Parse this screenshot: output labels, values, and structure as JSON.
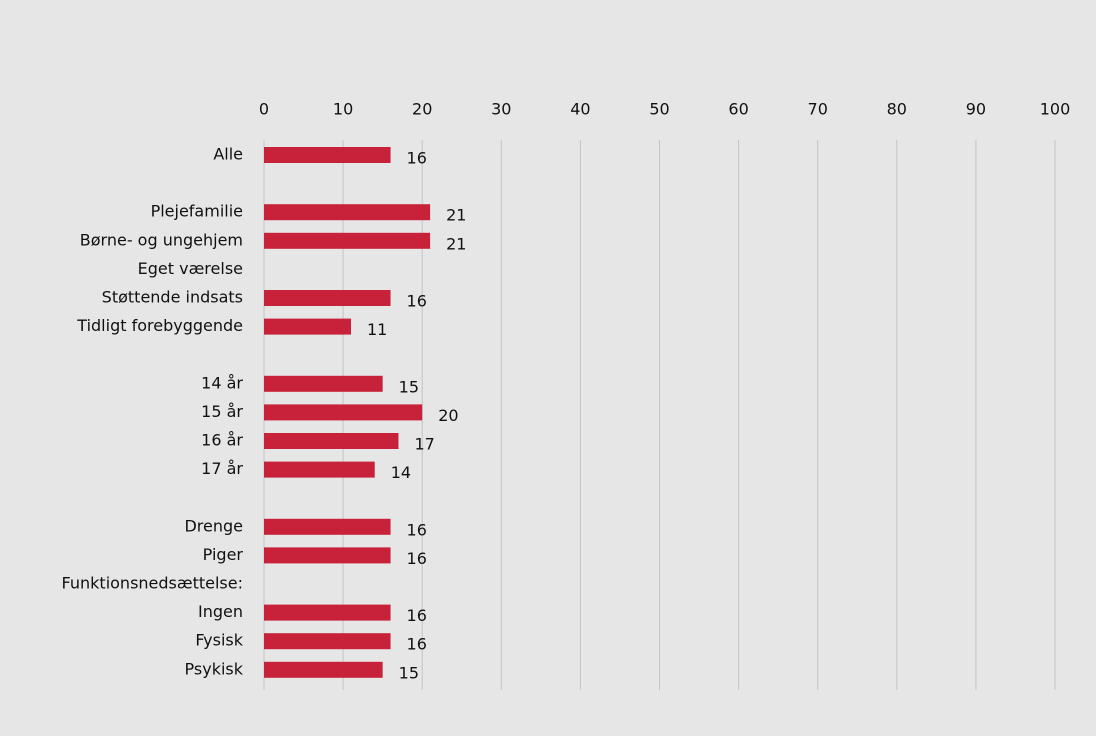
{
  "chart_data": {
    "type": "barh",
    "categories": [
      "Alle",
      null,
      "Plejefamilie",
      "Børne- og ungehjem",
      "Eget værelse",
      "Støttende indsats",
      "Tidligt forebyggende",
      null,
      "14 år",
      "15 år",
      "16 år",
      "17 år",
      null,
      "Drenge",
      "Piger",
      "Funktionsnedsættelse:",
      "Ingen",
      "Fysisk",
      "Psykisk"
    ],
    "values": [
      16,
      null,
      21,
      21,
      null,
      16,
      11,
      null,
      15,
      20,
      17,
      14,
      null,
      16,
      16,
      null,
      16,
      16,
      15
    ],
    "color": "#c8213a",
    "xlim": [
      0,
      100
    ],
    "xticks": [
      0,
      10,
      20,
      30,
      40,
      50,
      60,
      70,
      80,
      90,
      100
    ],
    "grid": true
  }
}
